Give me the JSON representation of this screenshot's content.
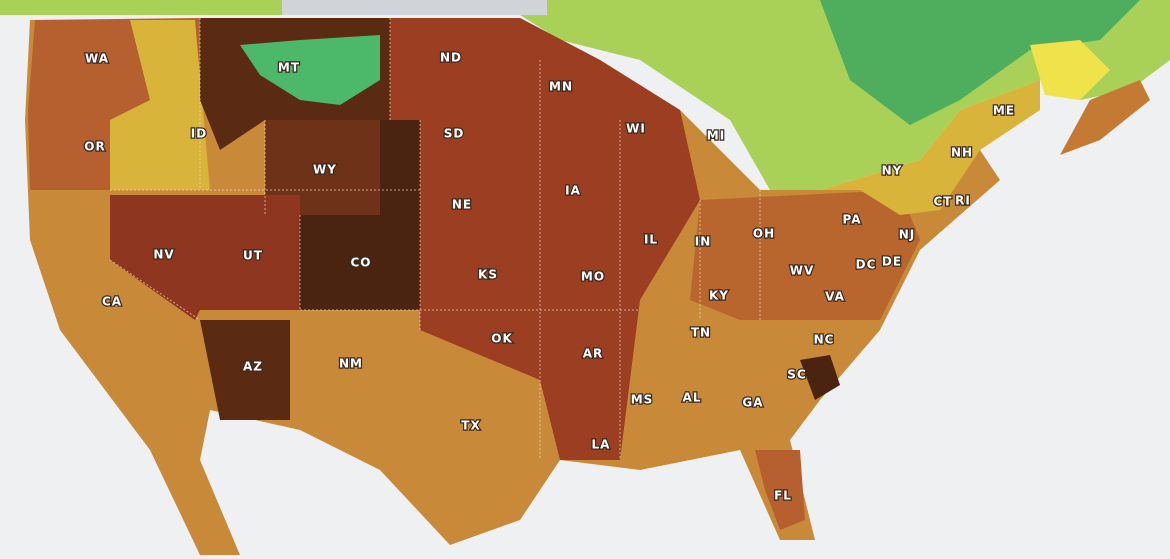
{
  "states": [
    {
      "label": "WA"
    },
    {
      "label": "MT"
    },
    {
      "label": "ND"
    },
    {
      "label": "MN"
    },
    {
      "label": "OR"
    },
    {
      "label": "ID"
    },
    {
      "label": "SD"
    },
    {
      "label": "WI"
    },
    {
      "label": "MI"
    },
    {
      "label": "WY"
    },
    {
      "label": "NY"
    },
    {
      "label": "ME"
    },
    {
      "label": "NH"
    },
    {
      "label": "CT"
    },
    {
      "label": "RI"
    },
    {
      "label": "IA"
    },
    {
      "label": "NE"
    },
    {
      "label": "PA"
    },
    {
      "label": "NV"
    },
    {
      "label": "UT"
    },
    {
      "label": "IL"
    },
    {
      "label": "IN"
    },
    {
      "label": "OH"
    },
    {
      "label": "NJ"
    },
    {
      "label": "CO"
    },
    {
      "label": "DC"
    },
    {
      "label": "DE"
    },
    {
      "label": "WV"
    },
    {
      "label": "KS"
    },
    {
      "label": "MO"
    },
    {
      "label": "KY"
    },
    {
      "label": "VA"
    },
    {
      "label": "CA"
    },
    {
      "label": "TN"
    },
    {
      "label": "NC"
    },
    {
      "label": "OK"
    },
    {
      "label": "AR"
    },
    {
      "label": "NM"
    },
    {
      "label": "AZ"
    },
    {
      "label": "SC"
    },
    {
      "label": "MS"
    },
    {
      "label": "AL"
    },
    {
      "label": "GA"
    },
    {
      "label": "TX"
    },
    {
      "label": "LA"
    },
    {
      "label": "FL"
    }
  ]
}
